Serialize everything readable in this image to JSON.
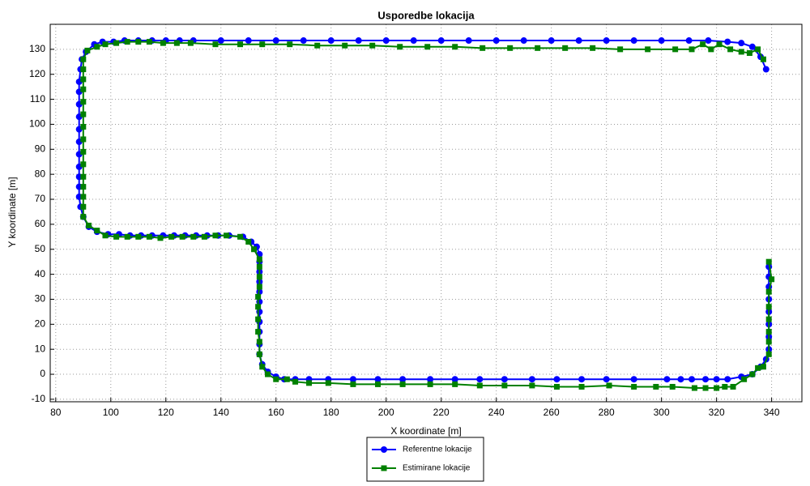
{
  "chart_data": {
    "type": "line",
    "title": "Usporedbe lokacija",
    "x_label": "X koordinate [m]",
    "y_label": "Y koordinate [m]",
    "xlim": [
      78,
      351
    ],
    "ylim": [
      -11,
      140
    ],
    "xticks": [
      80,
      100,
      120,
      140,
      160,
      180,
      200,
      220,
      240,
      260,
      280,
      300,
      320,
      340
    ],
    "yticks": [
      -10,
      0,
      10,
      20,
      30,
      40,
      50,
      60,
      70,
      80,
      90,
      100,
      110,
      120,
      130
    ],
    "grid": true,
    "legend": "bottom",
    "series": [
      {
        "name": "Referentne lokacije",
        "color": "#0000ff",
        "marker": "circle",
        "x": [
          339,
          339,
          339,
          339,
          339,
          339,
          339,
          339,
          338,
          336,
          333,
          329,
          324,
          320,
          316,
          311,
          307,
          302,
          290,
          280,
          271,
          262,
          253,
          243,
          234,
          225,
          216,
          206,
          197,
          188,
          179,
          172,
          167,
          163,
          160,
          157,
          155,
          154,
          154,
          154,
          154,
          154,
          154,
          154,
          154,
          154,
          154,
          154,
          153,
          151,
          148,
          143,
          139,
          135,
          131,
          127,
          123,
          119,
          115,
          111,
          107,
          103,
          99,
          95,
          92,
          90,
          89,
          88.5,
          88.5,
          88.5,
          88.5,
          88.5,
          88.5,
          88.5,
          88.5,
          88.5,
          88.5,
          88.5,
          89,
          89.5,
          91,
          94,
          97,
          101,
          105,
          110,
          115,
          120,
          125,
          130,
          140,
          150,
          160,
          170,
          180,
          190,
          200,
          210,
          220,
          230,
          240,
          250,
          260,
          270,
          280,
          290,
          300,
          310,
          317,
          324,
          329,
          333,
          336,
          338
        ],
        "y": [
          43,
          39,
          35,
          30,
          25,
          20,
          15,
          10,
          6,
          3,
          0,
          -1,
          -2,
          -2,
          -2,
          -2,
          -2,
          -2,
          -2,
          -2,
          -2,
          -2,
          -2,
          -2,
          -2,
          -2,
          -2,
          -2,
          -2,
          -2,
          -2,
          -2,
          -2,
          -2,
          -1,
          1,
          4,
          8,
          12,
          17,
          21,
          25,
          29,
          33,
          37,
          41,
          45,
          48,
          51,
          53,
          55,
          55.5,
          55.5,
          55.5,
          55.5,
          55.5,
          55.5,
          55.5,
          55.5,
          55.5,
          55.5,
          56,
          56,
          57,
          59,
          63,
          67,
          71,
          75,
          79,
          83,
          88,
          93,
          98,
          103,
          108,
          113,
          117,
          122,
          126,
          129,
          132,
          133,
          133,
          133.5,
          133.5,
          133.5,
          133.5,
          133.5,
          133.5,
          133.5,
          133.5,
          133.5,
          133.5,
          133.5,
          133.5,
          133.5,
          133.5,
          133.5,
          133.5,
          133.5,
          133.5,
          133.5,
          133.5,
          133.5,
          133.5,
          133.5,
          133.5,
          133.5,
          133,
          132.5,
          131,
          127,
          122
        ]
      },
      {
        "name": "Estimirane lokacije",
        "color": "#008000",
        "marker": "square",
        "x": [
          339,
          340,
          339,
          339,
          339,
          339,
          339,
          339,
          337,
          335,
          333,
          330,
          326,
          323,
          320,
          316,
          312,
          304,
          298,
          290,
          281,
          271,
          262,
          253,
          243,
          234,
          225,
          216,
          206,
          197,
          188,
          179,
          172,
          167,
          164,
          160,
          157,
          155,
          154,
          154,
          153.5,
          153.5,
          153.5,
          153.5,
          154,
          154,
          154,
          154,
          152,
          150,
          147,
          142,
          138,
          134,
          130,
          126,
          122,
          118,
          114,
          110,
          106,
          102,
          98,
          95,
          92,
          90,
          90,
          90,
          90,
          90,
          90,
          90,
          90,
          90,
          90,
          90,
          90,
          90,
          90,
          90,
          91.5,
          95,
          98,
          102,
          106,
          110,
          114,
          119,
          124,
          129,
          138,
          147,
          155,
          165,
          175,
          185,
          195,
          205,
          215,
          225,
          235,
          245,
          255,
          265,
          275,
          285,
          295,
          305,
          311,
          315,
          318,
          321,
          325,
          329,
          332,
          335,
          337
        ],
        "y": [
          45,
          38,
          33,
          27,
          22,
          17,
          13,
          8,
          3,
          2.5,
          0,
          -2,
          -5,
          -5,
          -5.5,
          -5.5,
          -5.5,
          -5,
          -5,
          -5,
          -4.5,
          -5,
          -5,
          -4.5,
          -4.5,
          -4.5,
          -4,
          -4,
          -4,
          -4,
          -4,
          -3.5,
          -3.5,
          -3,
          -2,
          -2,
          0,
          3,
          8,
          13,
          17,
          22,
          27,
          31,
          35,
          39,
          43,
          46,
          50,
          53,
          55,
          55.5,
          55.5,
          55,
          55,
          55,
          55,
          54.5,
          55,
          55,
          55,
          55,
          55.5,
          57.5,
          59.5,
          63,
          67,
          71,
          75,
          79,
          84,
          89,
          94,
          99,
          104,
          109,
          114,
          118,
          122,
          126,
          129.5,
          131,
          132,
          132.5,
          133,
          133,
          133,
          132.5,
          132.5,
          132.5,
          132,
          132,
          132,
          132,
          131.5,
          131.5,
          131.5,
          131,
          131,
          131,
          130.5,
          130.5,
          130.5,
          130.5,
          130.5,
          130,
          130,
          130,
          130,
          132,
          130,
          132,
          130,
          129,
          128.5,
          130,
          126
        ]
      }
    ]
  }
}
